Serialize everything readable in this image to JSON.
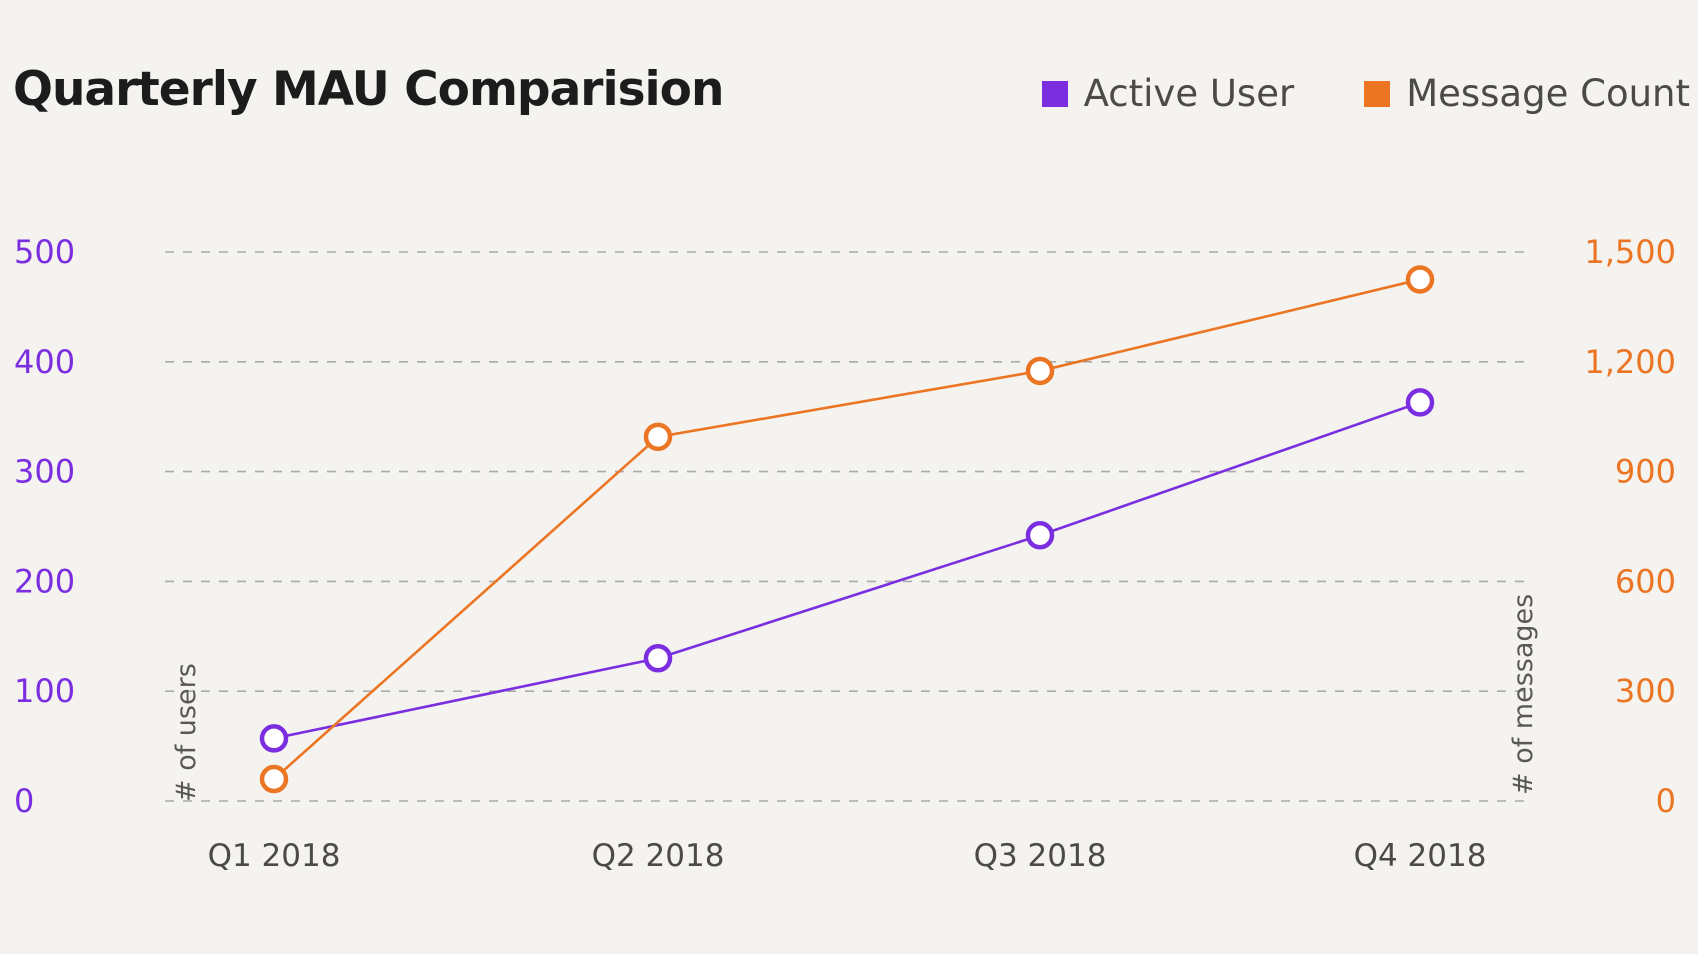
{
  "colors": {
    "active_user": "#7b2ee0",
    "message_count": "#ec7524",
    "grid": "#aaaaaa",
    "background": "#f4f3f0"
  },
  "chart_data": {
    "type": "line",
    "title": "Quarterly MAU Comparision",
    "categories": [
      "Q1 2018",
      "Q2 2018",
      "Q3 2018",
      "Q4 2018"
    ],
    "series": [
      {
        "name": "Active User",
        "axis": "left",
        "color": "#7b2ee0",
        "values": [
          57,
          130,
          242,
          363
        ]
      },
      {
        "name": "Message Count",
        "axis": "right",
        "color": "#ec7524",
        "values": [
          60,
          995,
          1175,
          1425
        ]
      }
    ],
    "y_left": {
      "label": "# of users",
      "ticks": [
        "0",
        "100",
        "200",
        "300",
        "400",
        "500"
      ],
      "min": 0,
      "max": 500
    },
    "y_right": {
      "label": "# of messages",
      "ticks": [
        "0",
        "300",
        "600",
        "900",
        "1,200",
        "1,500"
      ],
      "min": 0,
      "max": 1500
    },
    "grid": true,
    "legend_position": "top-right",
    "marker": "hollow-circle"
  }
}
